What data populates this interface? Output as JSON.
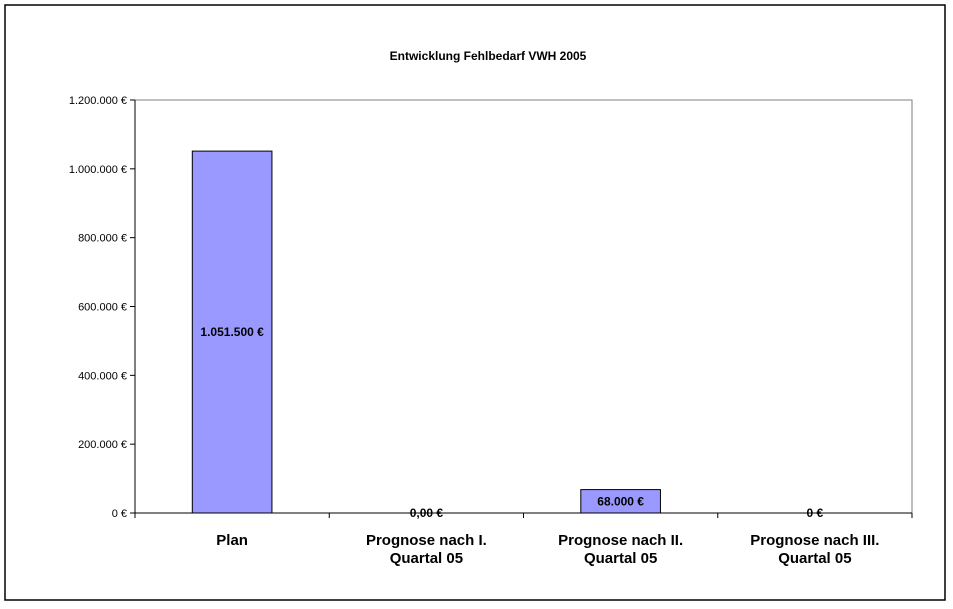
{
  "chart_data": {
    "type": "bar",
    "title": "Entwicklung Fehlbedarf VWH 2005",
    "categories": [
      [
        "Plan"
      ],
      [
        "Prognose nach I.",
        "Quartal 05"
      ],
      [
        "Prognose nach II.",
        "Quartal 05"
      ],
      [
        "Prognose nach III.",
        "Quartal 05"
      ]
    ],
    "values": [
      1051500,
      0,
      68000,
      0
    ],
    "data_labels": [
      "1.051.500 €",
      "0,00 €",
      "68.000 €",
      "0 €"
    ],
    "ylim": [
      0,
      1200000
    ],
    "yticks": [
      0,
      200000,
      400000,
      600000,
      800000,
      1000000,
      1200000
    ],
    "ytick_labels": [
      "0 €",
      "200.000 €",
      "400.000 €",
      "600.000 €",
      "800.000 €",
      "1.000.000 €",
      "1.200.000 €"
    ],
    "xlabel": "",
    "ylabel": "",
    "grid": false,
    "legend": "none",
    "colors": {
      "bar": "#9999ff",
      "bar_border": "#000000",
      "background": "#ffffff"
    }
  }
}
